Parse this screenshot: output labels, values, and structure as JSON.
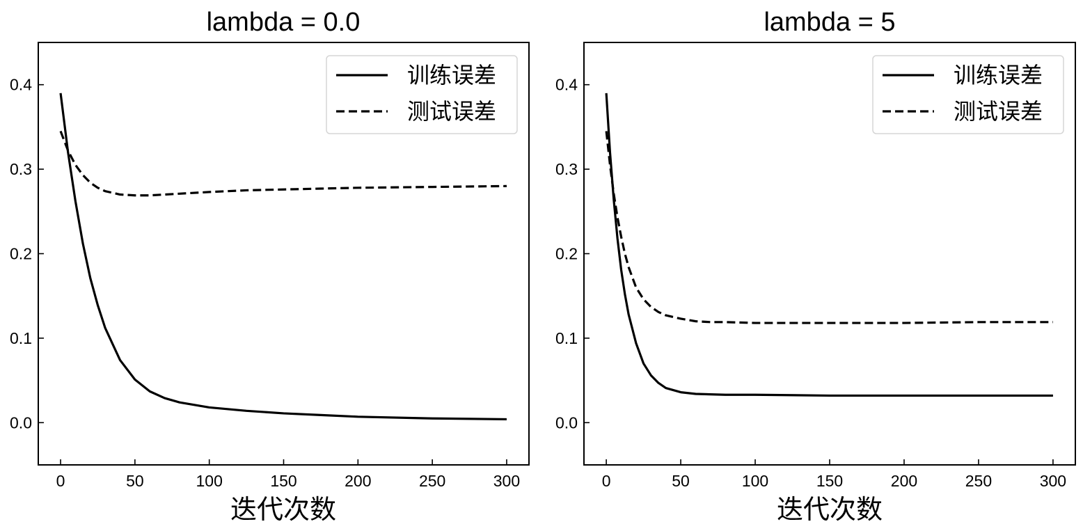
{
  "chart_data": [
    {
      "type": "line",
      "title": "lambda = 0.0",
      "xlabel": "迭代次数",
      "ylabel": "",
      "xlim": [
        -15,
        315
      ],
      "ylim": [
        -0.05,
        0.45
      ],
      "xticks": [
        0,
        50,
        100,
        150,
        200,
        250,
        300
      ],
      "yticks": [
        0.0,
        0.1,
        0.2,
        0.3,
        0.4
      ],
      "xtick_labels": [
        "0",
        "50",
        "100",
        "150",
        "200",
        "250",
        "300"
      ],
      "ytick_labels": [
        "0.0",
        "0.1",
        "0.2",
        "0.3",
        "0.4"
      ],
      "grid": false,
      "legend_position": "upper right",
      "series": [
        {
          "name": "训练误差",
          "style": "solid",
          "color": "#000000",
          "x": [
            0,
            5,
            10,
            15,
            20,
            25,
            30,
            40,
            50,
            60,
            70,
            80,
            100,
            125,
            150,
            175,
            200,
            250,
            300
          ],
          "y": [
            0.39,
            0.32,
            0.262,
            0.212,
            0.171,
            0.139,
            0.112,
            0.074,
            0.051,
            0.037,
            0.029,
            0.024,
            0.018,
            0.014,
            0.011,
            0.009,
            0.007,
            0.005,
            0.004
          ]
        },
        {
          "name": "测试误差",
          "style": "dashed",
          "color": "#000000",
          "x": [
            0,
            5,
            10,
            15,
            20,
            25,
            30,
            40,
            50,
            60,
            70,
            80,
            100,
            125,
            150,
            175,
            200,
            250,
            300
          ],
          "y": [
            0.345,
            0.322,
            0.305,
            0.293,
            0.284,
            0.278,
            0.274,
            0.27,
            0.269,
            0.269,
            0.27,
            0.271,
            0.273,
            0.275,
            0.276,
            0.277,
            0.278,
            0.279,
            0.28
          ]
        }
      ]
    },
    {
      "type": "line",
      "title": "lambda = 5",
      "xlabel": "迭代次数",
      "ylabel": "",
      "xlim": [
        -15,
        315
      ],
      "ylim": [
        -0.05,
        0.45
      ],
      "xticks": [
        0,
        50,
        100,
        150,
        200,
        250,
        300
      ],
      "yticks": [
        0.0,
        0.1,
        0.2,
        0.3,
        0.4
      ],
      "xtick_labels": [
        "0",
        "50",
        "100",
        "150",
        "200",
        "250",
        "300"
      ],
      "ytick_labels": [
        "0.0",
        "0.1",
        "0.2",
        "0.3",
        "0.4"
      ],
      "grid": false,
      "legend_position": "upper right",
      "series": [
        {
          "name": "训练误差",
          "style": "solid",
          "color": "#000000",
          "x": [
            0,
            2.5,
            5,
            7.5,
            10,
            12.5,
            15,
            20,
            25,
            30,
            35,
            40,
            50,
            60,
            80,
            100,
            150,
            200,
            250,
            300
          ],
          "y": [
            0.39,
            0.32,
            0.264,
            0.218,
            0.181,
            0.152,
            0.128,
            0.094,
            0.07,
            0.056,
            0.047,
            0.041,
            0.036,
            0.034,
            0.033,
            0.033,
            0.032,
            0.032,
            0.032,
            0.032
          ]
        },
        {
          "name": "测试误差",
          "style": "dashed",
          "color": "#000000",
          "x": [
            0,
            2.5,
            5,
            7.5,
            10,
            12.5,
            15,
            20,
            25,
            30,
            35,
            40,
            50,
            60,
            70,
            80,
            100,
            150,
            200,
            250,
            300
          ],
          "y": [
            0.345,
            0.305,
            0.271,
            0.243,
            0.22,
            0.2,
            0.184,
            0.16,
            0.146,
            0.137,
            0.131,
            0.127,
            0.123,
            0.12,
            0.119,
            0.119,
            0.118,
            0.118,
            0.118,
            0.119,
            0.119
          ]
        }
      ]
    }
  ]
}
